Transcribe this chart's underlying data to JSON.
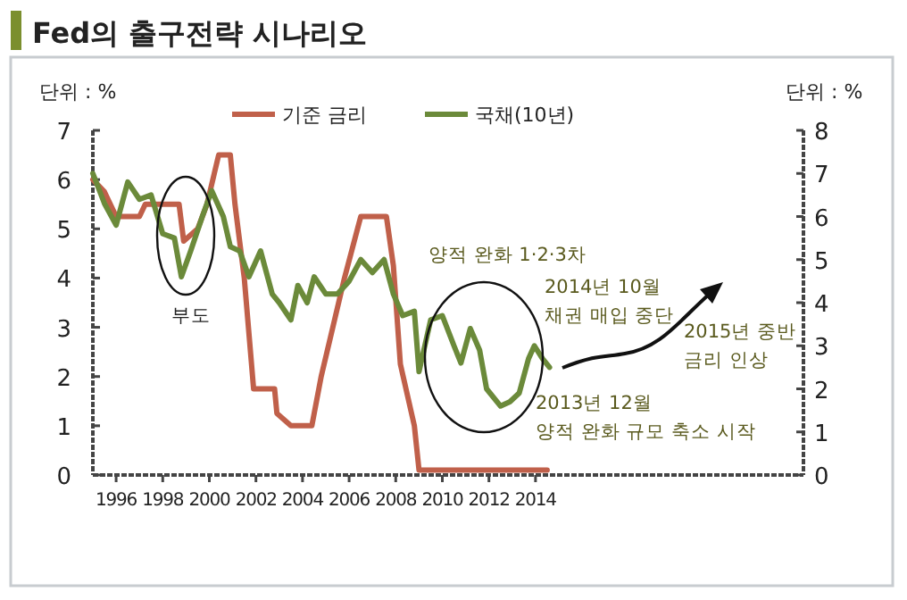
{
  "chart_data": {
    "type": "line",
    "title": "Fed의 출구전략 시나리오",
    "ylabel": "단위 : %",
    "y2label": "단위 : %",
    "xlim": [
      1995,
      2025.5
    ],
    "xticks": [
      1996,
      1998,
      2000,
      2002,
      2004,
      2006,
      2008,
      2010,
      2012,
      2014
    ],
    "ylim": [
      0,
      7
    ],
    "yticks": [
      0,
      1,
      2,
      3,
      4,
      5,
      6,
      7
    ],
    "y2lim": [
      0,
      8
    ],
    "y2ticks": [
      0,
      1,
      2,
      3,
      4,
      5,
      6,
      7,
      8
    ],
    "legend": "top",
    "grid": false,
    "series": [
      {
        "name": "기준 금리",
        "color": "#c0604a",
        "x": [
          1995.0,
          1995.5,
          1996.0,
          1997.0,
          1997.25,
          1998.7,
          1998.9,
          1999.5,
          1999.9,
          2000.4,
          2000.9,
          2001.1,
          2001.5,
          2001.9,
          2002.8,
          2002.9,
          2003.5,
          2004.4,
          2004.8,
          2005.3,
          2005.8,
          2006.5,
          2007.6,
          2007.9,
          2008.2,
          2008.8,
          2009.0,
          2014.5
        ],
        "values": [
          6.0,
          5.75,
          5.25,
          5.25,
          5.5,
          5.5,
          4.75,
          5.0,
          5.5,
          6.5,
          6.5,
          5.5,
          4.0,
          1.75,
          1.75,
          1.25,
          1.0,
          1.0,
          2.0,
          3.0,
          4.0,
          5.25,
          5.25,
          4.25,
          2.25,
          1.0,
          0.1,
          0.1
        ]
      },
      {
        "name": "국채(10년)",
        "color": "#6b8a3a",
        "axis": "y2",
        "x": [
          1995.0,
          1995.5,
          1996.0,
          1996.5,
          1997.0,
          1997.5,
          1998.0,
          1998.5,
          1998.8,
          1999.2,
          1999.7,
          2000.1,
          2000.6,
          2000.9,
          2001.3,
          2001.7,
          2002.2,
          2002.7,
          2003.0,
          2003.5,
          2003.8,
          2004.2,
          2004.5,
          2005.0,
          2005.5,
          2006.0,
          2006.5,
          2007.0,
          2007.5,
          2007.9,
          2008.3,
          2008.8,
          2009.0,
          2009.5,
          2010.0,
          2010.5,
          2010.8,
          2011.2,
          2011.6,
          2011.9,
          2012.5,
          2012.9,
          2013.3,
          2013.7,
          2013.95,
          2014.3,
          2014.6
        ],
        "values": [
          7.0,
          6.3,
          5.8,
          6.8,
          6.4,
          6.5,
          5.6,
          5.5,
          4.6,
          5.2,
          6.0,
          6.6,
          6.0,
          5.3,
          5.2,
          4.6,
          5.2,
          4.2,
          4.0,
          3.6,
          4.4,
          4.0,
          4.6,
          4.2,
          4.2,
          4.5,
          5.0,
          4.7,
          5.0,
          4.2,
          3.7,
          3.8,
          2.4,
          3.6,
          3.7,
          3.0,
          2.6,
          3.4,
          2.9,
          2.0,
          1.6,
          1.7,
          1.9,
          2.7,
          3.0,
          2.7,
          2.5
        ]
      }
    ],
    "annotations": [
      "부도",
      "양적 완화 1·2·3차",
      "2014년 10월\n채권 매입 중단",
      "2013년 12월\n양적 완화 규모 축소 시작",
      "2015년 중반\n금리 인상"
    ]
  }
}
